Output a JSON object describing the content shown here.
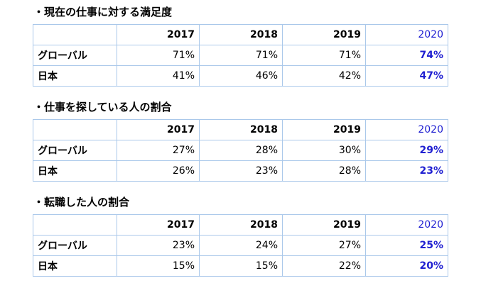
{
  "years": [
    "2017",
    "2018",
    "2019",
    "2020"
  ],
  "sections": [
    {
      "title": "・現在の仕事に対する満足度",
      "rows": [
        {
          "label": "グローバル",
          "values": [
            "71%",
            "71%",
            "71%",
            "74%"
          ]
        },
        {
          "label": "日本",
          "values": [
            "41%",
            "46%",
            "42%",
            "47%"
          ]
        }
      ]
    },
    {
      "title": "・仕事を探している人の割合",
      "rows": [
        {
          "label": "グローバル",
          "values": [
            "27%",
            "28%",
            "30%",
            "29%"
          ]
        },
        {
          "label": "日本",
          "values": [
            "26%",
            "23%",
            "28%",
            "23%"
          ]
        }
      ]
    },
    {
      "title": "・転職した人の割合",
      "rows": [
        {
          "label": "グローバル",
          "values": [
            "23%",
            "24%",
            "27%",
            "25%"
          ]
        },
        {
          "label": "日本",
          "values": [
            "15%",
            "15%",
            "22%",
            "20%"
          ]
        }
      ]
    }
  ],
  "colors": {
    "highlight": "#1f1fd1",
    "border": "#aac8ea"
  }
}
